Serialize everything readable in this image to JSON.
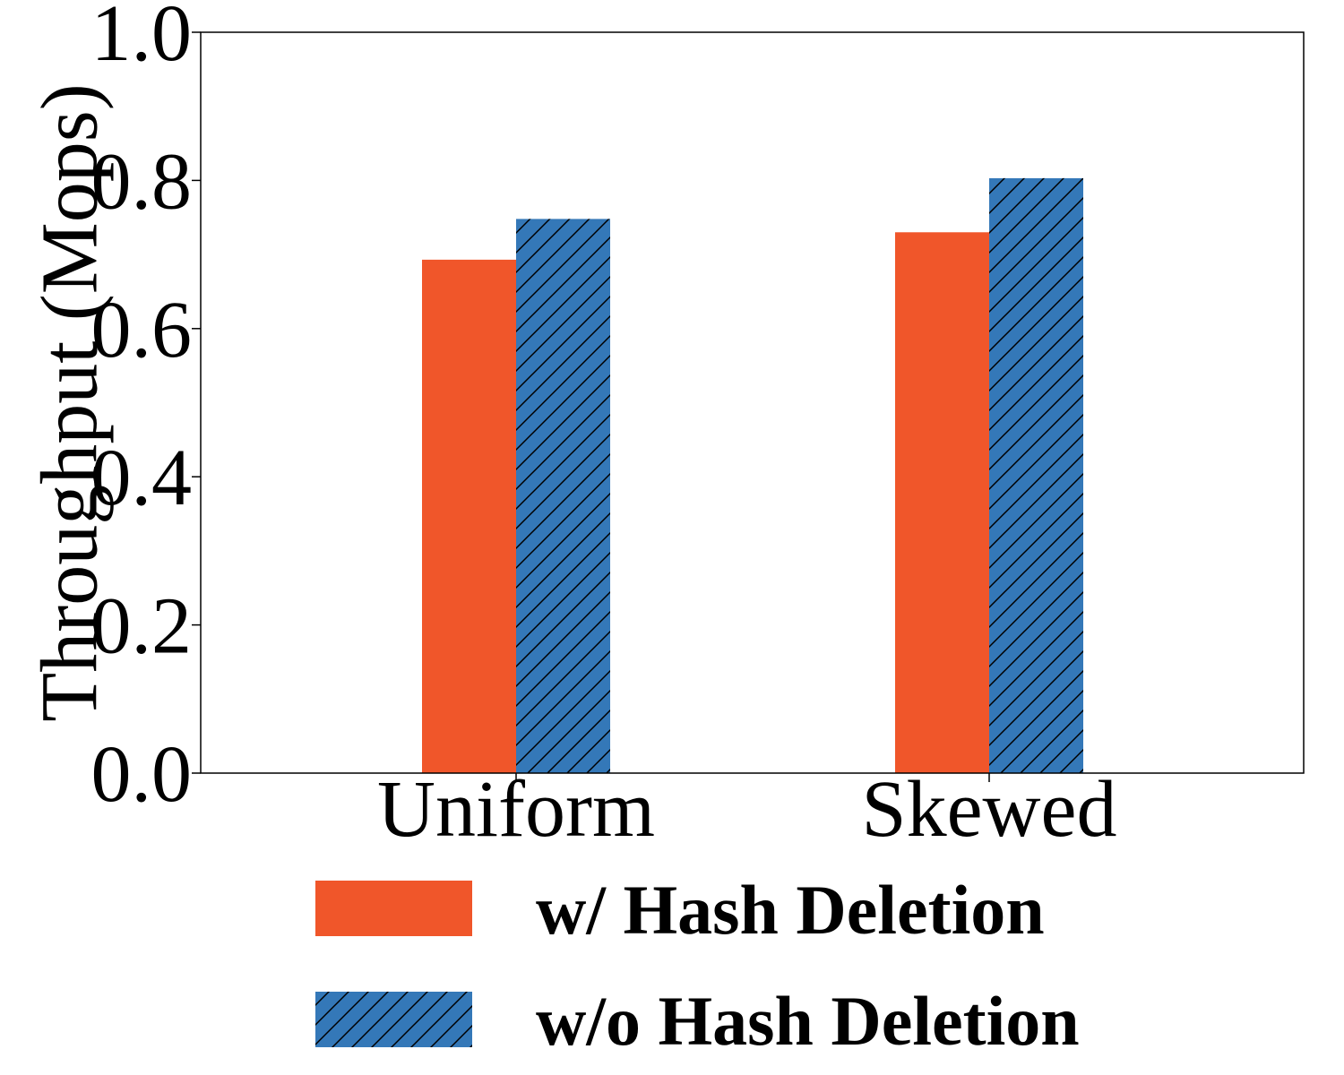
{
  "chart_data": {
    "type": "bar",
    "categories": [
      "Uniform",
      "Skewed"
    ],
    "series": [
      {
        "name": "w/ Hash Deletion",
        "values": [
          0.693,
          0.73
        ],
        "color": "#f0562a",
        "hatch": false
      },
      {
        "name": "w/o Hash Deletion",
        "values": [
          0.748,
          0.803
        ],
        "color": "#3478b8",
        "hatch": true
      }
    ],
    "ylabel": "Throughput (Mops)",
    "xlabel": "",
    "ylim": [
      0,
      1.0
    ],
    "yticks": [
      "0.0",
      "0.2",
      "0.4",
      "0.6",
      "0.8",
      "1.0"
    ],
    "grid": false,
    "legend_position": "bottom"
  }
}
